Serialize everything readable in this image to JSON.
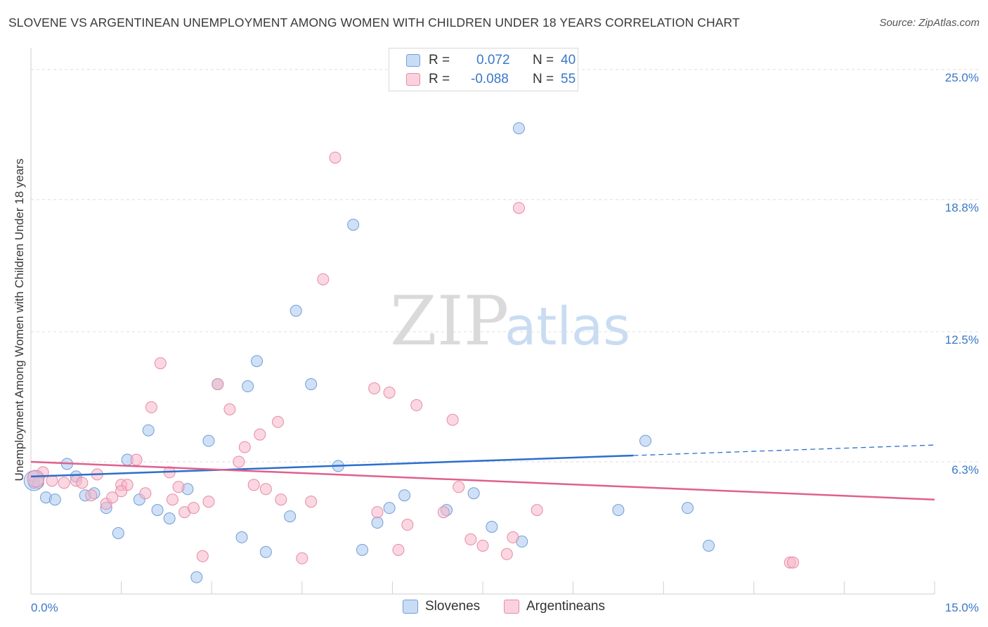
{
  "title": "SLOVENE VS ARGENTINEAN UNEMPLOYMENT AMONG WOMEN WITH CHILDREN UNDER 18 YEARS CORRELATION CHART",
  "source": "Source: ZipAtlas.com",
  "watermark": {
    "zip": "ZIP",
    "atlas": "atlas"
  },
  "legend": {
    "rows": [
      {
        "r_label": "R =",
        "r_value": "0.072",
        "n_label": "N =",
        "n_value": "40",
        "color": "#a9c7ef"
      },
      {
        "r_label": "R =",
        "r_value": "-0.088",
        "n_label": "N =",
        "n_value": "55",
        "color": "#f5b7c9"
      }
    ]
  },
  "bottom_legend": [
    {
      "label": "Slovenes",
      "color": "#a9c7ef"
    },
    {
      "label": "Argentineans",
      "color": "#f5b7c9"
    }
  ],
  "chart_data": {
    "type": "scatter",
    "xlabel": "",
    "ylabel": "Unemployment Among Women with Children Under 18 years",
    "xlim": [
      0,
      15
    ],
    "ylim": [
      0,
      25.7
    ],
    "x_tick_labels": [
      "0.0%",
      "15.0%"
    ],
    "y_ticks": [
      {
        "value": 6.3,
        "label": "6.3%"
      },
      {
        "value": 12.5,
        "label": "12.5%"
      },
      {
        "value": 18.8,
        "label": "18.8%"
      },
      {
        "value": 25.0,
        "label": "25.0%"
      }
    ],
    "grid": true,
    "series": [
      {
        "name": "Slovenes",
        "color": "#a9c7ef",
        "edge": "#6f9fd8",
        "trend_color": "#2a6fcc",
        "trend": {
          "x0": 0,
          "y0": 5.6,
          "x1": 10.0,
          "y1": 6.6,
          "x_dash_end": 15,
          "y_dash_end": 7.1
        },
        "points": [
          [
            0.05,
            5.3
          ],
          [
            0.25,
            4.6
          ],
          [
            0.4,
            4.5
          ],
          [
            0.6,
            6.2
          ],
          [
            0.75,
            5.6
          ],
          [
            0.9,
            4.7
          ],
          [
            1.05,
            4.8
          ],
          [
            1.25,
            4.1
          ],
          [
            1.45,
            2.9
          ],
          [
            1.6,
            6.4
          ],
          [
            1.8,
            4.5
          ],
          [
            1.95,
            7.8
          ],
          [
            2.1,
            4.0
          ],
          [
            2.3,
            3.6
          ],
          [
            2.6,
            5.0
          ],
          [
            2.75,
            0.8
          ],
          [
            2.95,
            7.3
          ],
          [
            3.1,
            10.0
          ],
          [
            3.5,
            2.7
          ],
          [
            3.6,
            9.9
          ],
          [
            3.75,
            11.1
          ],
          [
            3.9,
            2.0
          ],
          [
            4.3,
            3.7
          ],
          [
            4.4,
            13.5
          ],
          [
            4.65,
            10.0
          ],
          [
            5.1,
            6.1
          ],
          [
            5.35,
            17.6
          ],
          [
            5.5,
            2.1
          ],
          [
            5.75,
            3.4
          ],
          [
            5.95,
            4.1
          ],
          [
            6.2,
            4.7
          ],
          [
            6.9,
            4.0
          ],
          [
            7.35,
            4.8
          ],
          [
            7.65,
            3.2
          ],
          [
            8.1,
            22.2
          ],
          [
            8.15,
            2.5
          ],
          [
            9.75,
            4.0
          ],
          [
            10.2,
            7.3
          ],
          [
            10.9,
            4.1
          ],
          [
            11.25,
            2.3
          ]
        ]
      },
      {
        "name": "Argentineans",
        "color": "#f5b7c9",
        "edge": "#e88aa8",
        "trend_color": "#e0608e",
        "trend": {
          "x0": 0,
          "y0": 6.3,
          "x1": 15,
          "y1": 4.5
        },
        "points": [
          [
            0.05,
            5.6
          ],
          [
            0.2,
            5.8
          ],
          [
            0.35,
            5.4
          ],
          [
            0.55,
            5.3
          ],
          [
            0.75,
            5.4
          ],
          [
            0.85,
            5.3
          ],
          [
            1.0,
            4.7
          ],
          [
            1.1,
            5.7
          ],
          [
            1.25,
            4.3
          ],
          [
            1.35,
            4.6
          ],
          [
            1.5,
            5.2
          ],
          [
            1.6,
            5.2
          ],
          [
            1.75,
            6.4
          ],
          [
            1.9,
            4.8
          ],
          [
            2.0,
            8.9
          ],
          [
            2.15,
            11.0
          ],
          [
            2.3,
            5.8
          ],
          [
            2.45,
            5.1
          ],
          [
            2.55,
            3.9
          ],
          [
            2.7,
            4.1
          ],
          [
            2.85,
            1.8
          ],
          [
            2.95,
            4.4
          ],
          [
            3.1,
            10.0
          ],
          [
            3.3,
            8.8
          ],
          [
            3.45,
            6.3
          ],
          [
            3.55,
            7.0
          ],
          [
            3.7,
            5.2
          ],
          [
            3.8,
            7.6
          ],
          [
            3.9,
            5.0
          ],
          [
            4.1,
            8.2
          ],
          [
            4.15,
            4.5
          ],
          [
            4.5,
            1.7
          ],
          [
            4.65,
            4.4
          ],
          [
            4.85,
            15.0
          ],
          [
            5.05,
            20.8
          ],
          [
            5.7,
            9.8
          ],
          [
            5.75,
            3.9
          ],
          [
            5.95,
            9.6
          ],
          [
            6.1,
            2.1
          ],
          [
            6.25,
            3.3
          ],
          [
            6.4,
            9.0
          ],
          [
            6.85,
            3.9
          ],
          [
            7.0,
            8.3
          ],
          [
            7.1,
            5.1
          ],
          [
            7.3,
            2.6
          ],
          [
            7.5,
            2.3
          ],
          [
            7.9,
            1.9
          ],
          [
            8.0,
            2.7
          ],
          [
            8.4,
            4.0
          ],
          [
            8.1,
            18.4
          ],
          [
            12.6,
            1.5
          ],
          [
            12.65,
            1.5
          ],
          [
            0.12,
            5.3
          ],
          [
            1.5,
            4.9
          ],
          [
            2.35,
            4.5
          ]
        ]
      }
    ]
  }
}
